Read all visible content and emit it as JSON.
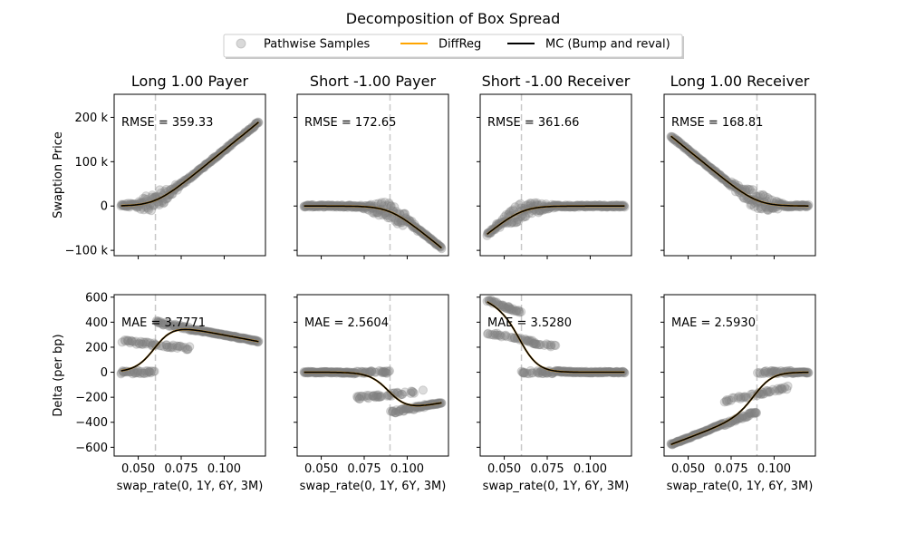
{
  "figure": {
    "title": "Decomposition of Box Spread",
    "legend": [
      {
        "label": "Pathwise Samples",
        "kind": "marker",
        "color": "#808080"
      },
      {
        "label": "DiffReg",
        "kind": "line",
        "color": "#FFA500"
      },
      {
        "label": "MC (Bump and reval)",
        "kind": "line",
        "color": "#000000"
      }
    ],
    "legend_placement": "top-center"
  },
  "chart_data": [
    {
      "type": "scatter",
      "title": "Long 1.00 Payer",
      "ylabel": "Swaption Price",
      "xlabel": "",
      "annotation": "RMSE = 359.33",
      "xlim": [
        0.036,
        0.124
      ],
      "ylim": [
        -112000,
        252000
      ],
      "yticks": [
        -100000,
        0,
        100000,
        200000
      ],
      "ytick_labels": [
        "−100 k",
        "0",
        "100 k",
        "200 k"
      ],
      "xticks": [
        0.05,
        0.075,
        0.1
      ],
      "xtick_labels": [],
      "strike": 0.06,
      "kind": "price",
      "position": 1,
      "grid": false
    },
    {
      "type": "scatter",
      "title": "Short -1.00 Payer",
      "ylabel": "",
      "xlabel": "",
      "annotation": "RMSE = 172.65",
      "xlim": [
        0.036,
        0.124
      ],
      "ylim": [
        -112000,
        252000
      ],
      "yticks": [
        -100000,
        0,
        100000,
        200000
      ],
      "ytick_labels": [],
      "xticks": [
        0.05,
        0.075,
        0.1
      ],
      "xtick_labels": [],
      "strike": 0.09,
      "kind": "price",
      "position": -1,
      "grid": false
    },
    {
      "type": "scatter",
      "title": "Short -1.00 Receiver",
      "ylabel": "",
      "xlabel": "",
      "annotation": "RMSE = 361.66",
      "xlim": [
        0.036,
        0.124
      ],
      "ylim": [
        -112000,
        252000
      ],
      "yticks": [
        -100000,
        0,
        100000,
        200000
      ],
      "ytick_labels": [],
      "xticks": [
        0.05,
        0.075,
        0.1
      ],
      "xtick_labels": [],
      "strike": 0.06,
      "kind": "price",
      "position": -1,
      "receiver": true,
      "grid": false
    },
    {
      "type": "scatter",
      "title": "Long 1.00 Receiver",
      "ylabel": "",
      "xlabel": "",
      "annotation": "RMSE = 168.81",
      "xlim": [
        0.036,
        0.124
      ],
      "ylim": [
        -112000,
        252000
      ],
      "yticks": [
        -100000,
        0,
        100000,
        200000
      ],
      "ytick_labels": [],
      "xticks": [
        0.05,
        0.075,
        0.1
      ],
      "xtick_labels": [],
      "strike": 0.09,
      "kind": "price",
      "position": 1,
      "receiver": true,
      "grid": false
    },
    {
      "type": "scatter",
      "title": "",
      "ylabel": "Delta (per bp)",
      "xlabel": "swap_rate(0, 1Y, 6Y, 3M)",
      "annotation": "MAE = 3.7771",
      "xlim": [
        0.036,
        0.124
      ],
      "ylim": [
        -670,
        620
      ],
      "yticks": [
        -600,
        -400,
        -200,
        0,
        200,
        400,
        600
      ],
      "ytick_labels": [
        "−600",
        "−400",
        "−200",
        "0",
        "200",
        "400",
        "600"
      ],
      "xticks": [
        0.05,
        0.075,
        0.1
      ],
      "xtick_labels": [
        "0.050",
        "0.075",
        "0.100"
      ],
      "strike": 0.06,
      "kind": "delta",
      "position": 1,
      "grid": false
    },
    {
      "type": "scatter",
      "title": "",
      "ylabel": "",
      "xlabel": "swap_rate(0, 1Y, 6Y, 3M)",
      "annotation": "MAE = 2.5604",
      "xlim": [
        0.036,
        0.124
      ],
      "ylim": [
        -670,
        620
      ],
      "yticks": [
        -600,
        -400,
        -200,
        0,
        200,
        400,
        600
      ],
      "ytick_labels": [],
      "xticks": [
        0.05,
        0.075,
        0.1
      ],
      "xtick_labels": [
        "0.050",
        "0.075",
        "0.100"
      ],
      "strike": 0.09,
      "kind": "delta",
      "position": -1,
      "grid": false
    },
    {
      "type": "scatter",
      "title": "",
      "ylabel": "",
      "xlabel": "swap_rate(0, 1Y, 6Y, 3M)",
      "annotation": "MAE = 3.5280",
      "xlim": [
        0.036,
        0.124
      ],
      "ylim": [
        -670,
        620
      ],
      "yticks": [
        -600,
        -400,
        -200,
        0,
        200,
        400,
        600
      ],
      "ytick_labels": [],
      "xticks": [
        0.05,
        0.075,
        0.1
      ],
      "xtick_labels": [
        "0.050",
        "0.075",
        "0.100"
      ],
      "strike": 0.06,
      "kind": "delta",
      "position": -1,
      "receiver": true,
      "grid": false
    },
    {
      "type": "scatter",
      "title": "",
      "ylabel": "",
      "xlabel": "swap_rate(0, 1Y, 6Y, 3M)",
      "annotation": "MAE = 2.5930",
      "xlim": [
        0.036,
        0.124
      ],
      "ylim": [
        -670,
        620
      ],
      "yticks": [
        -600,
        -400,
        -200,
        0,
        200,
        400,
        600
      ],
      "ytick_labels": [],
      "xticks": [
        0.05,
        0.075,
        0.1
      ],
      "xtick_labels": [
        "0.050",
        "0.075",
        "0.100"
      ],
      "strike": 0.09,
      "kind": "delta",
      "position": 1,
      "receiver": true,
      "grid": false
    }
  ]
}
